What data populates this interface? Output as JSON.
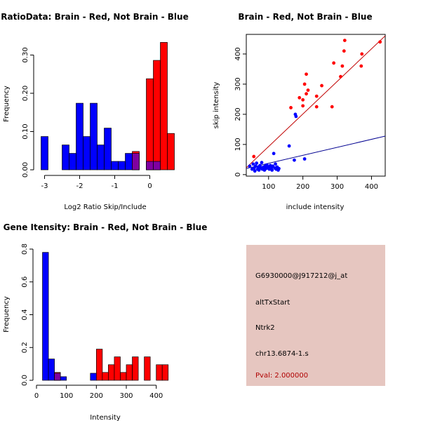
{
  "colors": {
    "brain": "#ff0000",
    "not_brain": "#0000ff",
    "overlap": "#7f00a0",
    "brain_fit": "#c00000",
    "not_brain_fit": "#000090",
    "info_panel": "#e6c6c0",
    "pval": "#b00000"
  },
  "chart_data": [
    {
      "id": "ratio_hist",
      "type": "bar",
      "title": "RatioData: Brain - Red, Not Brain - Blue",
      "xlabel": "Log2 Ratio Skip/Include",
      "ylabel": "Frequency",
      "xlim": [
        -3.2,
        0.7
      ],
      "ylim": [
        0,
        0.34
      ],
      "xticks": [
        -3,
        -2,
        -1,
        0
      ],
      "yticks": [
        0.0,
        0.1,
        0.2,
        0.3
      ],
      "ytick_labels": [
        "0.00",
        "0.10",
        "0.20",
        "0.30"
      ],
      "series": [
        {
          "name": "Not Brain",
          "bins": [
            {
              "x0": -3.1,
              "x1": -2.9,
              "value": 0.087
            },
            {
              "x0": -2.5,
              "x1": -2.3,
              "value": 0.065
            },
            {
              "x0": -2.3,
              "x1": -2.1,
              "value": 0.043
            },
            {
              "x0": -2.1,
              "x1": -1.9,
              "value": 0.174
            },
            {
              "x0": -1.9,
              "x1": -1.7,
              "value": 0.087
            },
            {
              "x0": -1.7,
              "x1": -1.5,
              "value": 0.174
            },
            {
              "x0": -1.5,
              "x1": -1.3,
              "value": 0.065
            },
            {
              "x0": -1.3,
              "x1": -1.1,
              "value": 0.109
            },
            {
              "x0": -1.1,
              "x1": -0.9,
              "value": 0.022
            },
            {
              "x0": -0.9,
              "x1": -0.7,
              "value": 0.022
            },
            {
              "x0": -0.7,
              "x1": -0.5,
              "value": 0.043
            },
            {
              "x0": -0.5,
              "x1": -0.3,
              "value": 0.043
            },
            {
              "x0": -0.1,
              "x1": 0.1,
              "value": 0.022
            },
            {
              "x0": 0.1,
              "x1": 0.3,
              "value": 0.022
            }
          ]
        },
        {
          "name": "Brain",
          "bins": [
            {
              "x0": -0.5,
              "x1": -0.3,
              "value": 0.048
            },
            {
              "x0": -0.1,
              "x1": 0.1,
              "value": 0.238
            },
            {
              "x0": 0.1,
              "x1": 0.3,
              "value": 0.286
            },
            {
              "x0": 0.3,
              "x1": 0.5,
              "value": 0.333
            },
            {
              "x0": 0.5,
              "x1": 0.7,
              "value": 0.095
            }
          ]
        }
      ]
    },
    {
      "id": "intensity_scatter",
      "type": "scatter",
      "title": "Brain - Red, Not Brain - Blue",
      "xlabel": "include intensity",
      "ylabel": "skip intensity",
      "xlim": [
        35,
        440
      ],
      "ylim": [
        -5,
        465
      ],
      "xticks": [
        100,
        200,
        300,
        400
      ],
      "yticks": [
        0,
        100,
        200,
        300,
        400
      ],
      "series": [
        {
          "name": "Brain",
          "points": [
            [
              57,
              60
            ],
            [
              165,
              222
            ],
            [
              190,
              255
            ],
            [
              200,
              228
            ],
            [
              200,
              248
            ],
            [
              205,
              300
            ],
            [
              210,
              268
            ],
            [
              210,
              333
            ],
            [
              215,
              280
            ],
            [
              240,
              225
            ],
            [
              240,
              260
            ],
            [
              255,
              295
            ],
            [
              285,
              225
            ],
            [
              290,
              370
            ],
            [
              310,
              325
            ],
            [
              315,
              360
            ],
            [
              320,
              410
            ],
            [
              322,
              445
            ],
            [
              370,
              360
            ],
            [
              372,
              400
            ],
            [
              425,
              440
            ]
          ],
          "fit": {
            "slope": 1.08,
            "intercept": -15
          }
        },
        {
          "name": "Not Brain",
          "points": [
            [
              45,
              28
            ],
            [
              52,
              18
            ],
            [
              55,
              35
            ],
            [
              58,
              22
            ],
            [
              60,
              12
            ],
            [
              62,
              28
            ],
            [
              65,
              38
            ],
            [
              68,
              18
            ],
            [
              70,
              25
            ],
            [
              72,
              15
            ],
            [
              75,
              30
            ],
            [
              78,
              22
            ],
            [
              80,
              40
            ],
            [
              82,
              18
            ],
            [
              85,
              25
            ],
            [
              88,
              15
            ],
            [
              90,
              28
            ],
            [
              92,
              20
            ],
            [
              95,
              32
            ],
            [
              98,
              22
            ],
            [
              100,
              25
            ],
            [
              102,
              18
            ],
            [
              105,
              30
            ],
            [
              108,
              20
            ],
            [
              110,
              15
            ],
            [
              112,
              28
            ],
            [
              115,
              70
            ],
            [
              118,
              22
            ],
            [
              120,
              35
            ],
            [
              122,
              18
            ],
            [
              125,
              25
            ],
            [
              128,
              15
            ],
            [
              130,
              20
            ],
            [
              160,
              95
            ],
            [
              175,
              48
            ],
            [
              178,
              200
            ],
            [
              180,
              193
            ],
            [
              205,
              52
            ]
          ],
          "fit": {
            "slope": 0.265,
            "intercept": 11
          }
        }
      ]
    },
    {
      "id": "gene_hist",
      "type": "bar",
      "title": "Gene Itensity: Brain - Red, Not Brain - Blue",
      "xlabel": "Intensity",
      "ylabel": "Frequency",
      "xlim": [
        0,
        450
      ],
      "ylim": [
        0,
        0.8
      ],
      "xticks": [
        0,
        100,
        200,
        300,
        400
      ],
      "yticks": [
        0.0,
        0.2,
        0.4,
        0.6,
        0.8
      ],
      "ytick_labels": [
        "0.0",
        "0.2",
        "0.4",
        "0.6",
        "0.8"
      ],
      "series": [
        {
          "name": "Not Brain",
          "bins": [
            {
              "x0": 20,
              "x1": 40,
              "value": 0.78
            },
            {
              "x0": 40,
              "x1": 60,
              "value": 0.13
            },
            {
              "x0": 60,
              "x1": 80,
              "value": 0.043
            },
            {
              "x0": 80,
              "x1": 100,
              "value": 0.022
            },
            {
              "x0": 180,
              "x1": 200,
              "value": 0.043
            }
          ]
        },
        {
          "name": "Brain",
          "bins": [
            {
              "x0": 60,
              "x1": 80,
              "value": 0.048
            },
            {
              "x0": 200,
              "x1": 220,
              "value": 0.19
            },
            {
              "x0": 220,
              "x1": 240,
              "value": 0.048
            },
            {
              "x0": 240,
              "x1": 260,
              "value": 0.095
            },
            {
              "x0": 260,
              "x1": 280,
              "value": 0.143
            },
            {
              "x0": 280,
              "x1": 300,
              "value": 0.048
            },
            {
              "x0": 300,
              "x1": 320,
              "value": 0.095
            },
            {
              "x0": 320,
              "x1": 340,
              "value": 0.143
            },
            {
              "x0": 360,
              "x1": 380,
              "value": 0.143
            },
            {
              "x0": 400,
              "x1": 420,
              "value": 0.095
            },
            {
              "x0": 420,
              "x1": 440,
              "value": 0.095
            }
          ]
        }
      ]
    }
  ],
  "info_panel": {
    "probe_id": "G6930000@J917212@j_at",
    "event_type": "altTxStart",
    "gene": "Ntrk2",
    "location": "chr13.6874-1.s",
    "pval": "Pval: 2.000000"
  }
}
